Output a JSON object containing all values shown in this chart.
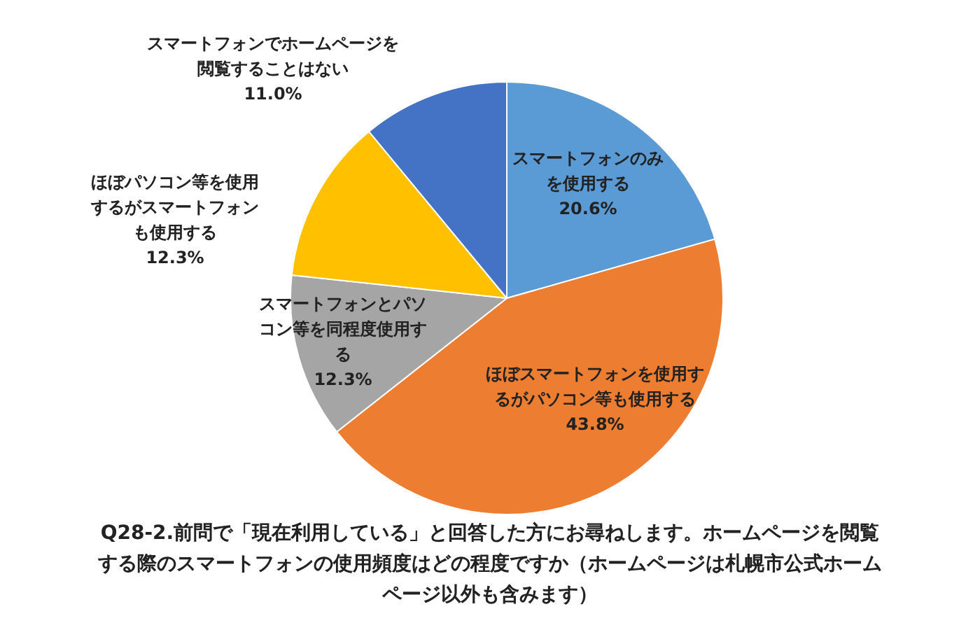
{
  "chart_data": {
    "type": "pie",
    "title": "Q28-2.前問で「現在利用している」と回答した方にお尋ねします。ホームページを閲覧する際のスマートフォンの使用頻度はどの程度ですか（ホームページは札幌市公式ホームページ以外も含みます）",
    "categories": [
      "スマートフォンのみを使用する",
      "ほぼスマートフォンを使用するがパソコン等も使用する",
      "スマートフォンとパソコン等を同程度使用する",
      "ほぼパソコン等を使用するがスマートフォンも使用する",
      "スマートフォンでホームページを閲覧することはない"
    ],
    "values": [
      20.6,
      43.8,
      12.3,
      12.3,
      11.0
    ],
    "value_labels": [
      "20.6%",
      "43.8%",
      "12.3%",
      "12.3%",
      "11.0%"
    ],
    "colors": [
      "#5b9bd5",
      "#ed7d31",
      "#a5a5a5",
      "#ffc000",
      "#4472c4"
    ],
    "legend": false
  }
}
